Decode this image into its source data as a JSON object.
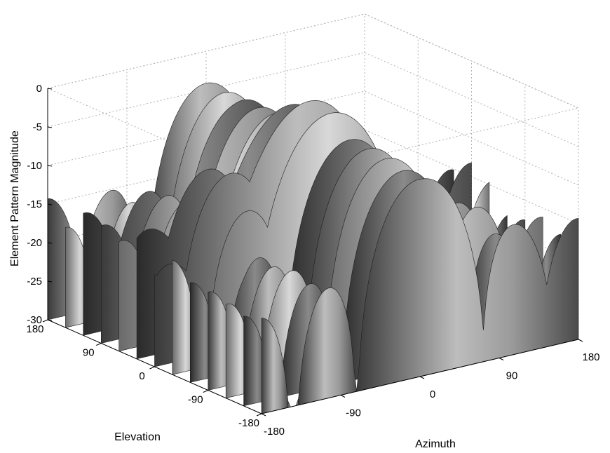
{
  "chart_data": {
    "type": "surface",
    "title": "",
    "xlabel": "Azimuth",
    "ylabel": "Elevation",
    "zlabel": "Element Pattern Magnitude",
    "xlim": [
      -180,
      180
    ],
    "ylim": [
      -180,
      180
    ],
    "zlim": [
      -30,
      0
    ],
    "x_ticks": [
      "-180",
      "-90",
      "0",
      "90",
      "180"
    ],
    "y_ticks": [
      "-180",
      "-90",
      "0",
      "90",
      "180"
    ],
    "z_ticks": [
      "0",
      "-5",
      "-10",
      "-15",
      "-20",
      "-25",
      "-30"
    ],
    "grid": true,
    "colormap": "gray",
    "peak_value": 0,
    "floor_value": -30
  }
}
